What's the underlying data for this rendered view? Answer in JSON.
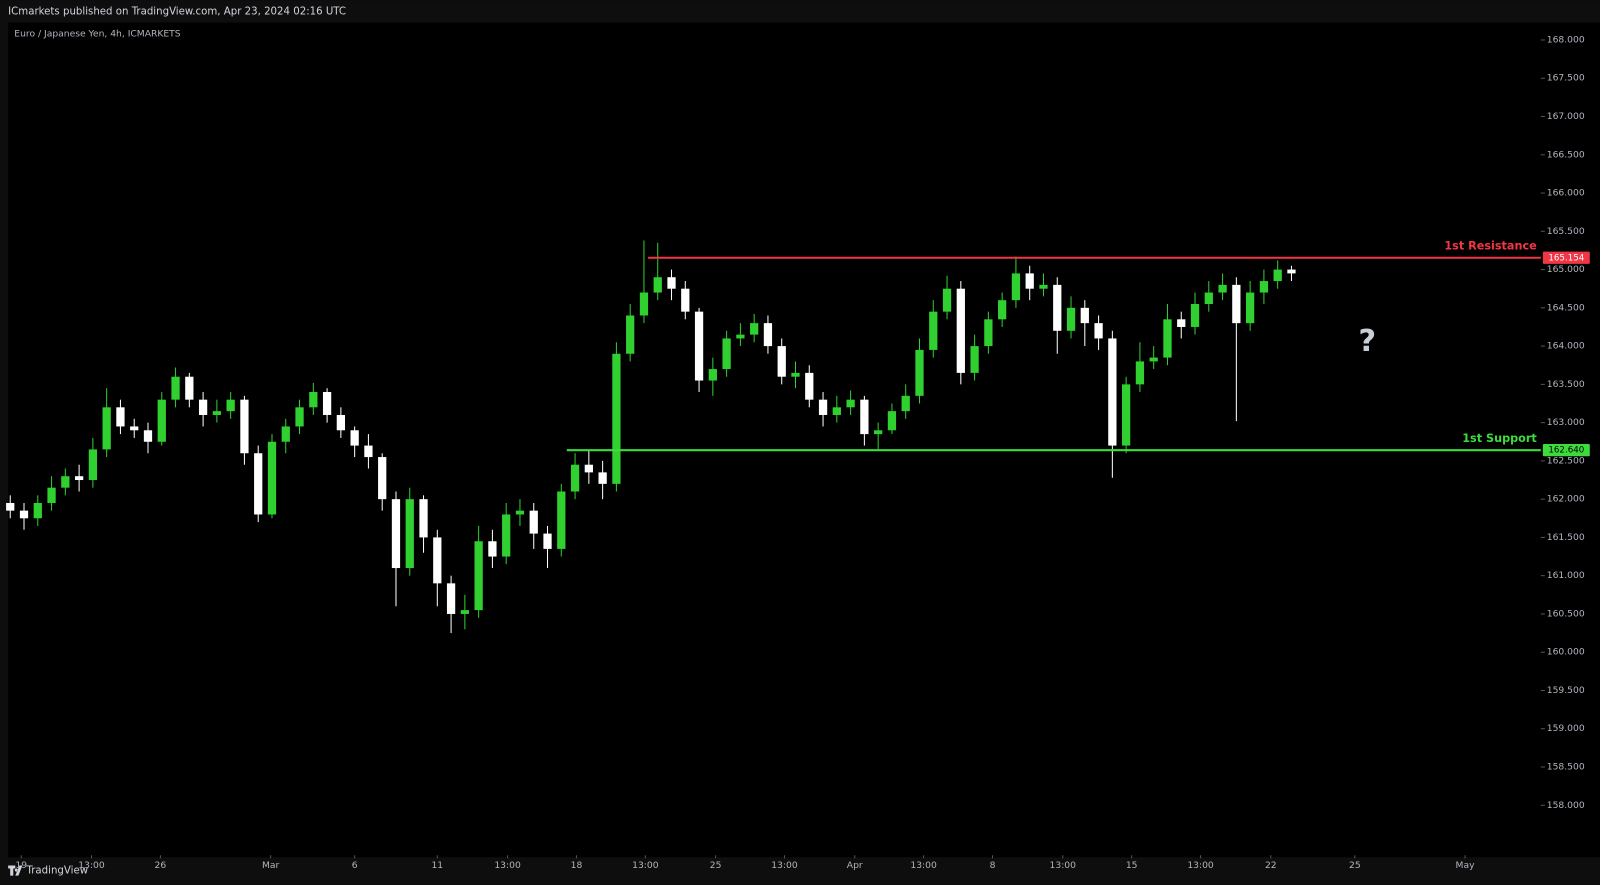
{
  "header": "ICmarkets published on TradingView.com, Apr 23, 2024 02:16 UTC",
  "brand": "TradingView",
  "chart_data": {
    "type": "candlestick",
    "title": "Euro / Japanese Yen, 4h, ICMARKETS",
    "up_color": "#2fd02f",
    "down_color": "#ffffff",
    "open": [
      161.95,
      161.85,
      161.75,
      161.95,
      162.15,
      162.3,
      162.25,
      162.65,
      163.2,
      162.95,
      162.9,
      162.75,
      163.3,
      163.6,
      163.3,
      163.1,
      163.15,
      163.3,
      162.6,
      161.8,
      162.75,
      162.95,
      163.2,
      163.4,
      163.1,
      162.9,
      162.7,
      162.55,
      162.0,
      161.1,
      162.0,
      161.5,
      160.9,
      160.5,
      160.55,
      161.45,
      161.25,
      161.8,
      161.85,
      161.55,
      161.35,
      162.1,
      162.45,
      162.35,
      162.2,
      163.9,
      164.4,
      164.7,
      164.9,
      164.75,
      164.45,
      163.55,
      163.7,
      164.1,
      164.15,
      164.3,
      164.0,
      163.6,
      163.65,
      163.3,
      163.1,
      163.2,
      163.3,
      162.85,
      162.9,
      163.15,
      163.35,
      163.95,
      164.45,
      164.75,
      163.65,
      164.0,
      164.35,
      164.6,
      164.95,
      164.75,
      164.8,
      164.2,
      164.5,
      164.3,
      164.1,
      162.7,
      163.5,
      163.8,
      163.85,
      164.35,
      164.25,
      164.55,
      164.7,
      164.8,
      164.3,
      164.7,
      164.85,
      165.0
    ],
    "high": [
      162.05,
      161.95,
      162.05,
      162.3,
      162.4,
      162.45,
      162.8,
      163.45,
      163.3,
      163.05,
      163.0,
      163.4,
      163.72,
      163.65,
      163.4,
      163.3,
      163.4,
      163.35,
      162.7,
      162.85,
      163.05,
      163.3,
      163.52,
      163.45,
      163.2,
      162.95,
      162.85,
      162.6,
      162.1,
      162.15,
      162.05,
      161.6,
      161.0,
      160.75,
      161.65,
      161.6,
      161.95,
      162.0,
      161.95,
      161.65,
      162.2,
      162.6,
      162.65,
      162.5,
      164.05,
      164.55,
      165.38,
      165.35,
      165.0,
      164.85,
      164.5,
      163.85,
      164.2,
      164.3,
      164.42,
      164.4,
      164.1,
      163.8,
      163.75,
      163.4,
      163.35,
      163.42,
      163.35,
      163.0,
      163.25,
      163.5,
      164.1,
      164.6,
      164.92,
      164.85,
      164.15,
      164.45,
      164.7,
      165.17,
      165.05,
      164.95,
      164.9,
      164.65,
      164.6,
      164.4,
      164.2,
      163.6,
      164.05,
      164.0,
      164.55,
      164.45,
      164.7,
      164.85,
      164.95,
      164.9,
      164.85,
      165.0,
      165.12,
      165.05
    ],
    "low": [
      161.75,
      161.6,
      161.65,
      161.85,
      162.05,
      162.1,
      162.15,
      162.55,
      162.85,
      162.8,
      162.6,
      162.7,
      163.2,
      163.2,
      162.95,
      163.0,
      163.05,
      162.45,
      161.7,
      161.75,
      162.6,
      162.85,
      163.1,
      163.0,
      162.8,
      162.55,
      162.4,
      161.85,
      160.6,
      161.0,
      161.3,
      160.6,
      160.25,
      160.3,
      160.45,
      161.1,
      161.15,
      161.65,
      161.35,
      161.1,
      161.25,
      162.0,
      162.2,
      162.0,
      162.1,
      163.8,
      164.3,
      164.6,
      164.6,
      164.35,
      163.4,
      163.35,
      163.6,
      164.0,
      164.05,
      163.9,
      163.5,
      163.45,
      163.2,
      162.95,
      163.0,
      163.1,
      162.7,
      162.65,
      162.85,
      163.05,
      163.25,
      163.85,
      164.35,
      163.5,
      163.55,
      163.9,
      164.25,
      164.5,
      164.6,
      164.65,
      163.9,
      164.1,
      164.0,
      163.95,
      162.28,
      162.6,
      163.4,
      163.7,
      163.75,
      164.1,
      164.15,
      164.45,
      164.6,
      163.02,
      164.2,
      164.55,
      164.75,
      164.85
    ],
    "close": [
      161.85,
      161.75,
      161.95,
      162.15,
      162.3,
      162.25,
      162.65,
      163.2,
      162.95,
      162.9,
      162.75,
      163.3,
      163.6,
      163.3,
      163.1,
      163.15,
      163.3,
      162.6,
      161.8,
      162.75,
      162.95,
      163.2,
      163.4,
      163.1,
      162.9,
      162.7,
      162.55,
      162.0,
      161.1,
      162.0,
      161.5,
      160.9,
      160.5,
      160.55,
      161.45,
      161.25,
      161.8,
      161.85,
      161.55,
      161.35,
      162.1,
      162.45,
      162.35,
      162.2,
      163.9,
      164.4,
      164.7,
      164.9,
      164.75,
      164.45,
      163.55,
      163.7,
      164.1,
      164.15,
      164.3,
      164.0,
      163.6,
      163.65,
      163.3,
      163.1,
      163.2,
      163.3,
      162.85,
      162.9,
      163.15,
      163.35,
      163.95,
      164.45,
      164.75,
      163.65,
      164.0,
      164.35,
      164.6,
      164.95,
      164.75,
      164.8,
      164.2,
      164.5,
      164.3,
      164.1,
      162.7,
      163.5,
      163.8,
      163.85,
      164.35,
      164.25,
      164.55,
      164.7,
      164.8,
      164.3,
      164.7,
      164.85,
      165.0,
      164.95
    ],
    "xlim": [
      -0.15,
      111.1
    ],
    "xticks": [
      {
        "value": 0.8,
        "label": "19"
      },
      {
        "value": 5.9,
        "label": "13:00"
      },
      {
        "value": 10.9,
        "label": "26"
      },
      {
        "value": 18.9,
        "label": "Mar"
      },
      {
        "value": 25.0,
        "label": "6"
      },
      {
        "value": 31.0,
        "label": "11"
      },
      {
        "value": 36.1,
        "label": "13:00"
      },
      {
        "value": 41.1,
        "label": "18"
      },
      {
        "value": 46.1,
        "label": "13:00"
      },
      {
        "value": 51.2,
        "label": "25"
      },
      {
        "value": 56.2,
        "label": "13:00"
      },
      {
        "value": 61.3,
        "label": "Apr"
      },
      {
        "value": 66.3,
        "label": "13:00"
      },
      {
        "value": 71.3,
        "label": "8"
      },
      {
        "value": 76.4,
        "label": "13:00"
      },
      {
        "value": 81.4,
        "label": "15"
      },
      {
        "value": 86.4,
        "label": "13:00"
      },
      {
        "value": 91.5,
        "label": "22"
      },
      {
        "value": 97.6,
        "label": "25"
      },
      {
        "value": 105.6,
        "label": "May"
      }
    ],
    "ylim": [
      157.347,
      168.227
    ],
    "yticks": [
      {
        "value": 158,
        "label": "158.000"
      },
      {
        "value": 158.5,
        "label": "158.500"
      },
      {
        "value": 159,
        "label": "159.000"
      },
      {
        "value": 159.5,
        "label": "159.500"
      },
      {
        "value": 160,
        "label": "160.000"
      },
      {
        "value": 160.5,
        "label": "160.500"
      },
      {
        "value": 161,
        "label": "161.000"
      },
      {
        "value": 161.5,
        "label": "161.500"
      },
      {
        "value": 162,
        "label": "162.000"
      },
      {
        "value": 162.5,
        "label": "162.500"
      },
      {
        "value": 163,
        "label": "163.000"
      },
      {
        "value": 163.5,
        "label": "163.500"
      },
      {
        "value": 164,
        "label": "164.000"
      },
      {
        "value": 164.5,
        "label": "164.500"
      },
      {
        "value": 165,
        "label": "165.000"
      },
      {
        "value": 165.5,
        "label": "165.500"
      },
      {
        "value": 166,
        "label": "166.000"
      },
      {
        "value": 166.5,
        "label": "166.500"
      },
      {
        "value": 167,
        "label": "167.000"
      },
      {
        "value": 167.5,
        "label": "167.500"
      },
      {
        "value": 168,
        "label": "168.000"
      }
    ],
    "levels": [
      {
        "name": "1st Resistance",
        "value": 165.154,
        "start": 46.3,
        "color": "#f23645"
      },
      {
        "name": "1st Support",
        "value": 162.64,
        "label": "162.640",
        "start": 40.4,
        "color": "#3ddc3d"
      }
    ],
    "annotations": [
      {
        "text": "?",
        "x": 98.5,
        "y": 164.05
      }
    ]
  }
}
